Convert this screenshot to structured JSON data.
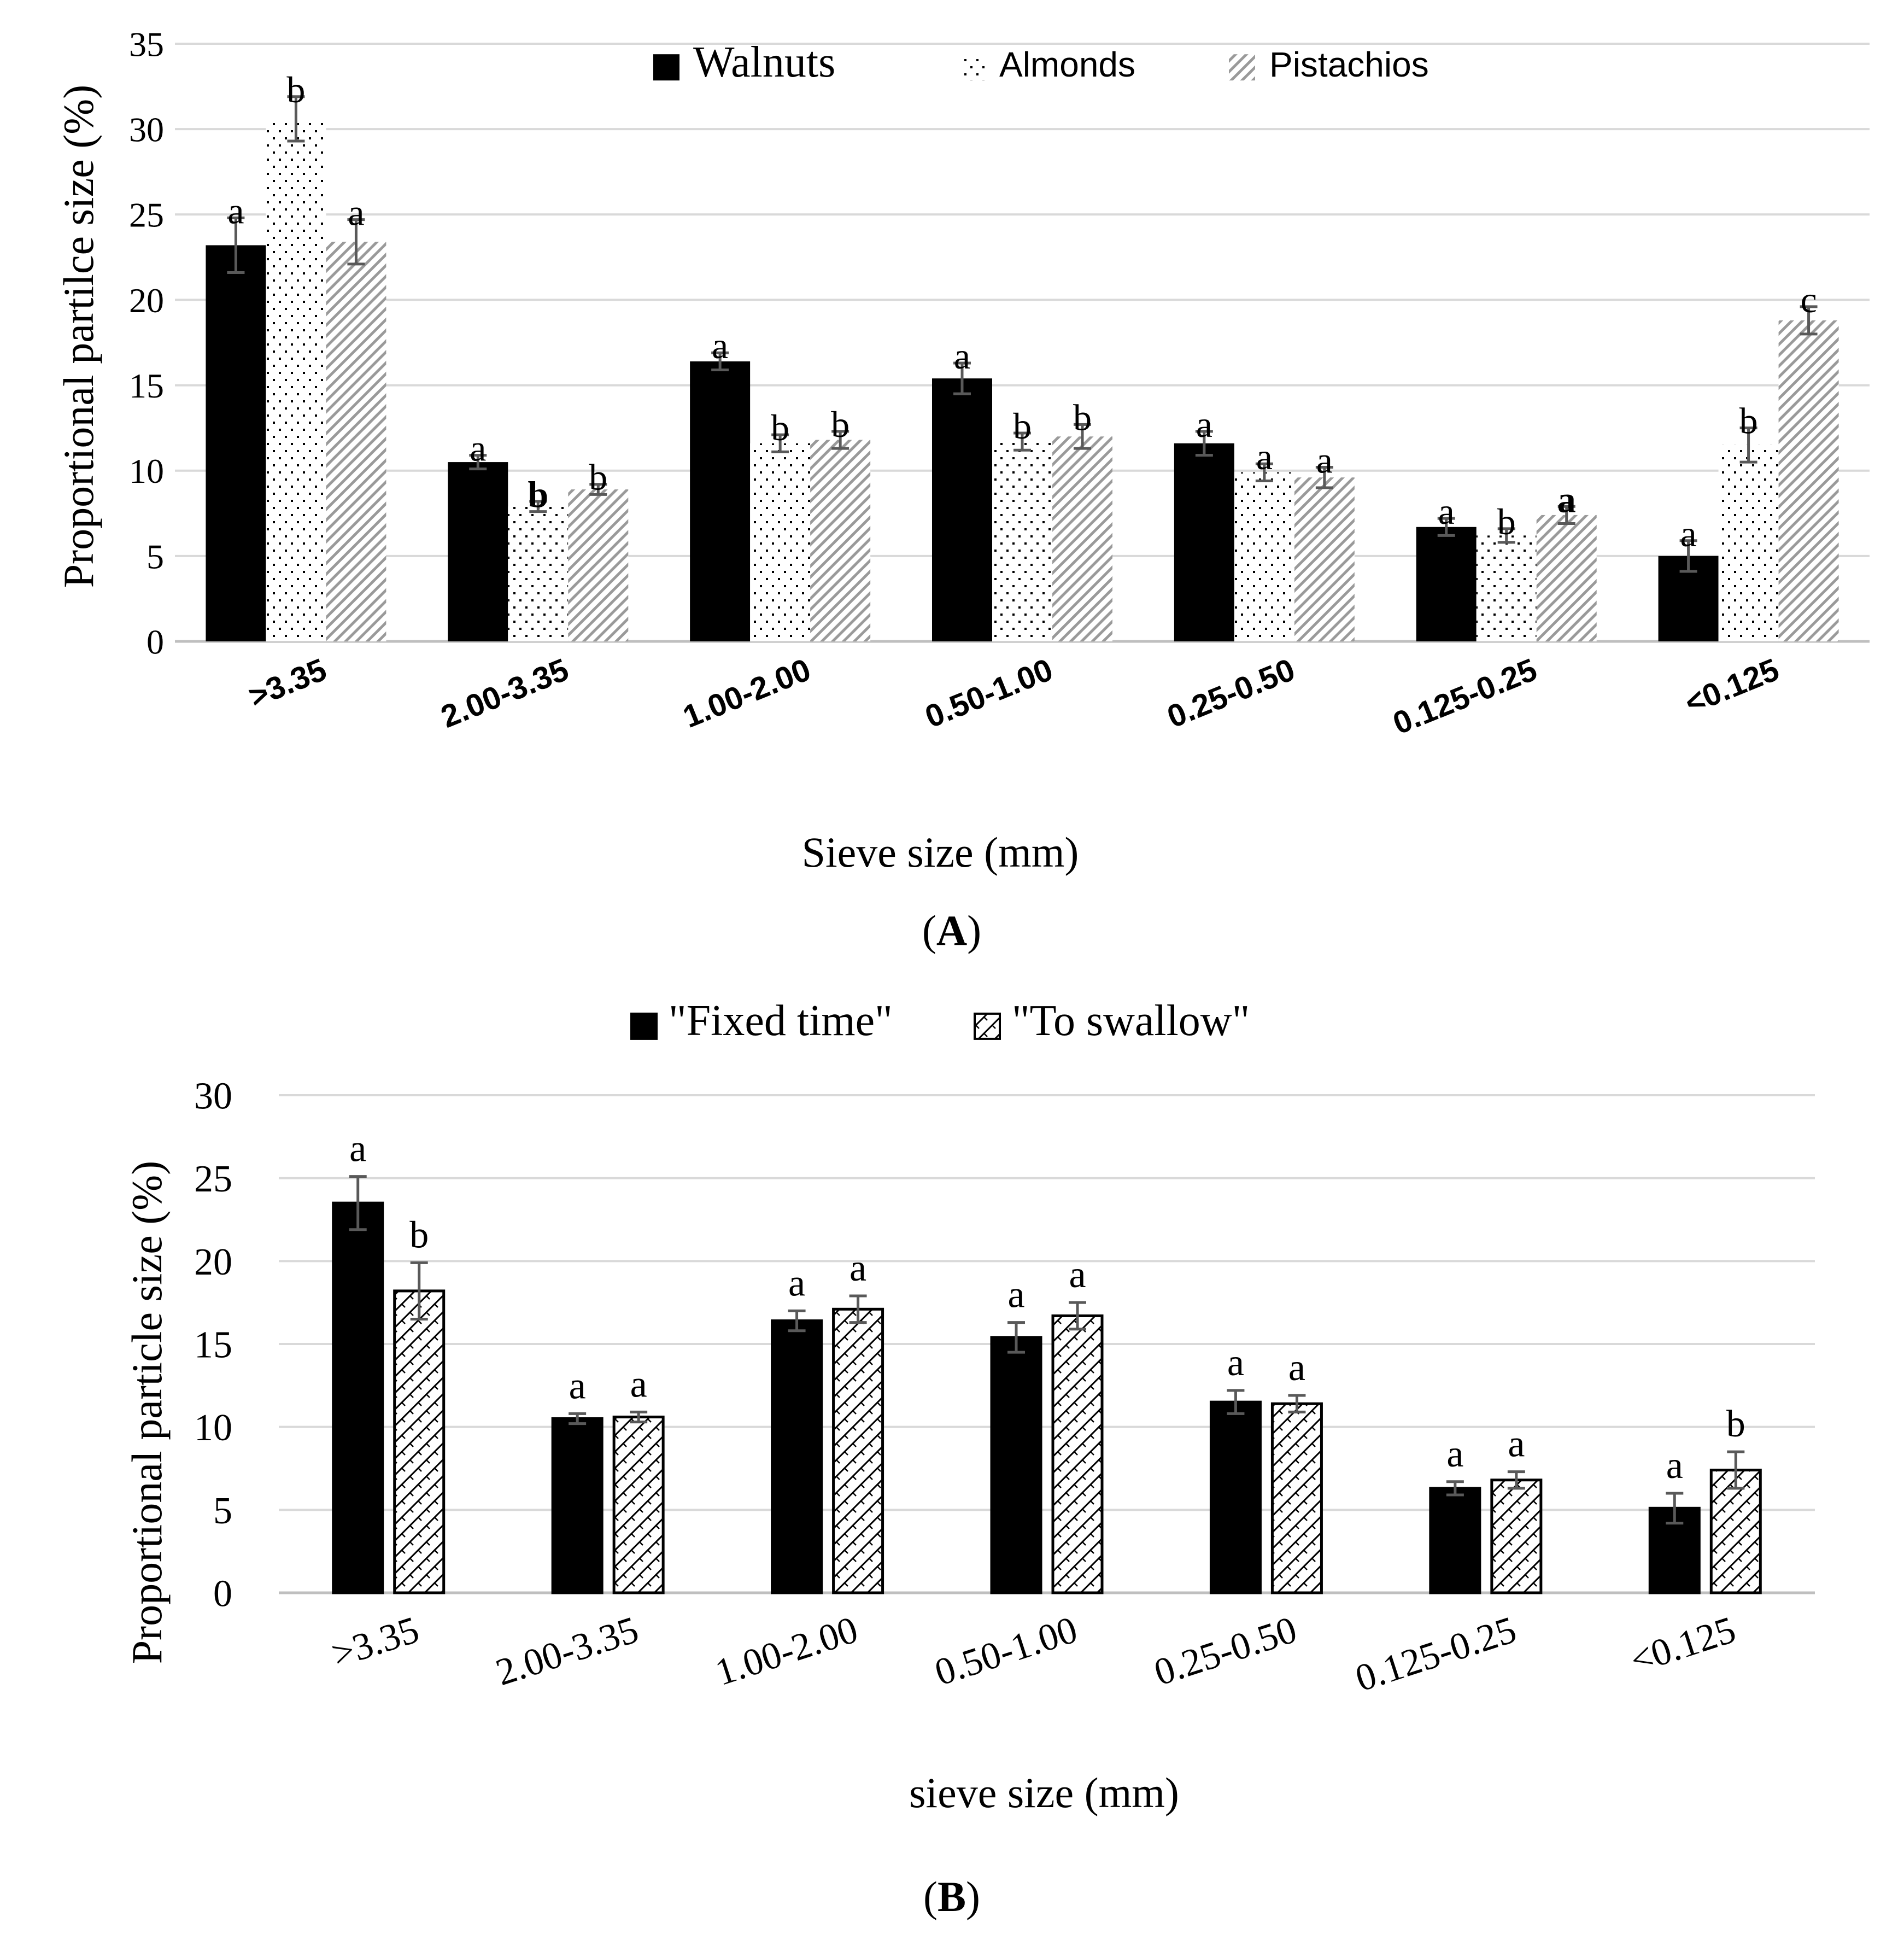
{
  "colors": {
    "grid": "#d9d9d9",
    "axis": "#bfbfbf",
    "bar_solid": "#000000",
    "error": "#595959",
    "text": "#000000"
  },
  "chart_data": [
    {
      "type": "bar",
      "panel_label": "A",
      "categories": [
        ">3.35",
        "2.00-3.35",
        "1.00-2.00",
        "0.50-1.00",
        "0.25-0.50",
        "0.125-0.25",
        "<0.125"
      ],
      "xlabel": "Sieve size (mm)",
      "ylabel": "Proportional partilce size (%)",
      "ylim": [
        0,
        35
      ],
      "yticks": [
        0,
        5,
        10,
        15,
        20,
        25,
        30,
        35
      ],
      "grid": true,
      "legend_position": "top-center",
      "series": [
        {
          "name": "Walnuts",
          "pattern": "solid",
          "values": [
            23.2,
            10.5,
            16.4,
            15.4,
            11.6,
            6.7,
            5.0
          ],
          "errors": [
            1.6,
            0.4,
            0.5,
            0.9,
            0.7,
            0.5,
            0.9
          ],
          "labels": [
            "a",
            "a",
            "a",
            "a",
            "a",
            "a",
            "a"
          ]
        },
        {
          "name": "Almonds",
          "pattern": "dots",
          "values": [
            30.6,
            7.9,
            11.6,
            11.7,
            9.9,
            6.2,
            11.5
          ],
          "errors": [
            1.3,
            0.3,
            0.5,
            0.5,
            0.5,
            0.4,
            1.0
          ],
          "labels": [
            "b",
            "b",
            "b",
            "b",
            "a",
            "b",
            "b"
          ]
        },
        {
          "name": "Pistachios",
          "pattern": "diagonal",
          "values": [
            23.4,
            8.9,
            11.8,
            12.0,
            9.6,
            7.4,
            18.8
          ],
          "errors": [
            1.3,
            0.3,
            0.5,
            0.7,
            0.6,
            0.5,
            0.8
          ],
          "labels": [
            "a",
            "b",
            "b",
            "b",
            "a",
            "a",
            "c"
          ]
        }
      ]
    },
    {
      "type": "bar",
      "panel_label": "B",
      "categories": [
        ">3.35",
        "2.00-3.35",
        "1.00-2.00",
        "0.50-1.00",
        "0.25-0.50",
        "0.125-0.25",
        "<0.125"
      ],
      "xlabel": "sieve size (mm)",
      "ylabel": "Proportional particle size (%)",
      "ylim": [
        0,
        30
      ],
      "yticks": [
        0,
        5,
        10,
        15,
        20,
        25,
        30
      ],
      "grid": true,
      "legend_position": "top-center",
      "series": [
        {
          "name": "\"Fixed time\"",
          "pattern": "solid",
          "values": [
            23.5,
            10.5,
            16.4,
            15.4,
            11.5,
            6.3,
            5.1
          ],
          "errors": [
            1.6,
            0.3,
            0.6,
            0.9,
            0.7,
            0.4,
            0.9
          ],
          "labels": [
            "a",
            "a",
            "a",
            "a",
            "a",
            "a",
            "a"
          ]
        },
        {
          "name": "\"To swallow\"",
          "pattern": "zigzag",
          "values": [
            18.2,
            10.6,
            17.1,
            16.7,
            11.4,
            6.8,
            7.4
          ],
          "errors": [
            1.7,
            0.3,
            0.8,
            0.8,
            0.5,
            0.5,
            1.1
          ],
          "labels": [
            "b",
            "a",
            "a",
            "a",
            "a",
            "a",
            "b"
          ]
        }
      ]
    }
  ]
}
